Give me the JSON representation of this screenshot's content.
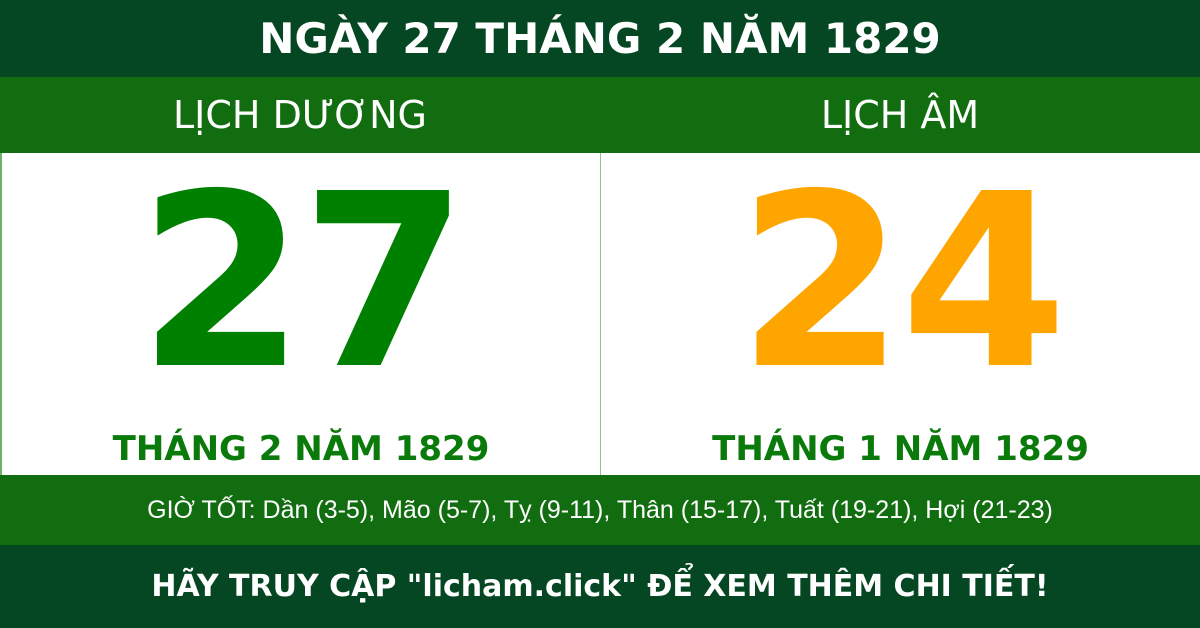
{
  "header": {
    "title": "NGÀY 27 THÁNG 2 NĂM 1829"
  },
  "solar": {
    "label": "LỊCH DƯƠNG",
    "day": "27",
    "month_year": "THÁNG 2 NĂM 1829",
    "color": "#008000"
  },
  "lunar": {
    "label": "LỊCH ÂM",
    "day": "24",
    "month_year": "THÁNG 1 NĂM 1829",
    "color": "#ffa500"
  },
  "good_hours": "GIỜ TỐT: Dần (3-5), Mão (5-7), Tỵ (9-11), Thân (15-17), Tuất (19-21), Hợi (21-23)",
  "footer": "HÃY TRUY CẬP \"licham.click\" ĐỂ XEM THÊM CHI TIẾT!"
}
